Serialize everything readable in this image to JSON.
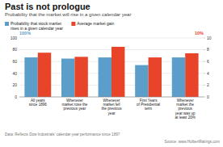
{
  "chart_data": {
    "type": "bar",
    "title": "Past is not prologue",
    "subtitle": "Probability that the market will rise in a given calendar year",
    "categories": [
      "All years\nsince 1896",
      "Whenever\nmarket rose the\nprevious year",
      "Whenever\nmarket fell\nthe previous\nyear",
      "First Years\nof Presidential\nterm",
      "Whenever\nmarket the\nprevious\nyear was up\nat least 20%"
    ],
    "series": [
      {
        "name": "Probability that stock market\nrises in a given calendar year",
        "color": "#5B9EC9",
        "values": [
          67,
          65,
          67,
          54,
          67
        ]
      },
      {
        "name": "Average market gain",
        "color": "#E8442A",
        "values": [
          7.5,
          6.8,
          8.5,
          6.7,
          7.4
        ],
        "axis": "y2"
      }
    ],
    "ylim": [
      0,
      100
    ],
    "yticks": [
      0,
      20,
      40,
      60,
      80,
      100
    ],
    "y2lim": [
      0,
      10
    ],
    "y2ticks": [
      0,
      2,
      4,
      6,
      8,
      10
    ],
    "ylabel": "100%",
    "y2label": "10%",
    "footnote": "Data: Reflects Dow Industrials' calendar-year performance since 1897",
    "source": "Source: www.HulbertRatings.com",
    "grid": true,
    "legend": "upper left"
  }
}
